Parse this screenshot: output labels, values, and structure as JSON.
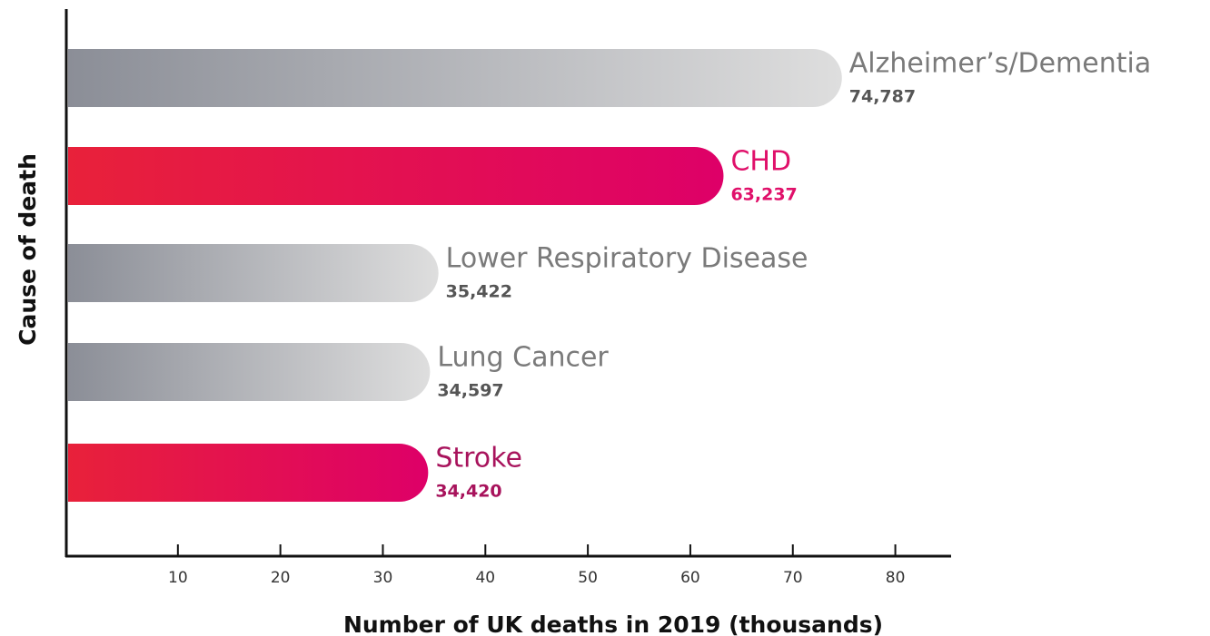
{
  "chart_data": {
    "type": "barh",
    "xlabel": "Number of UK deaths in 2019 (thousands)",
    "ylabel": "Cause of death",
    "categories": [
      "Alzheimer’s/Dementia",
      "CHD",
      "Lower Respiratory Disease",
      "Lung Cancer",
      "Stroke"
    ],
    "values": [
      74.787,
      63.237,
      35.422,
      34.597,
      34.42
    ],
    "value_labels": [
      "74,787",
      "63,237",
      "35,422",
      "34,597",
      "34,420"
    ],
    "colors": [
      [
        "#8b8e97",
        "#dedede"
      ],
      [
        "#e8213a",
        "#de0068"
      ],
      [
        "#8b8e97",
        "#dedede"
      ],
      [
        "#8b8e97",
        "#dedede"
      ],
      [
        "#e8213a",
        "#de0068"
      ]
    ],
    "label_colors": [
      "#7a7a7a",
      "#e0106a",
      "#7a7a7a",
      "#7a7a7a",
      "#a8135c"
    ],
    "xlim": [
      0,
      85
    ],
    "xticks": [
      10,
      20,
      30,
      40,
      50,
      60,
      70,
      80
    ]
  }
}
